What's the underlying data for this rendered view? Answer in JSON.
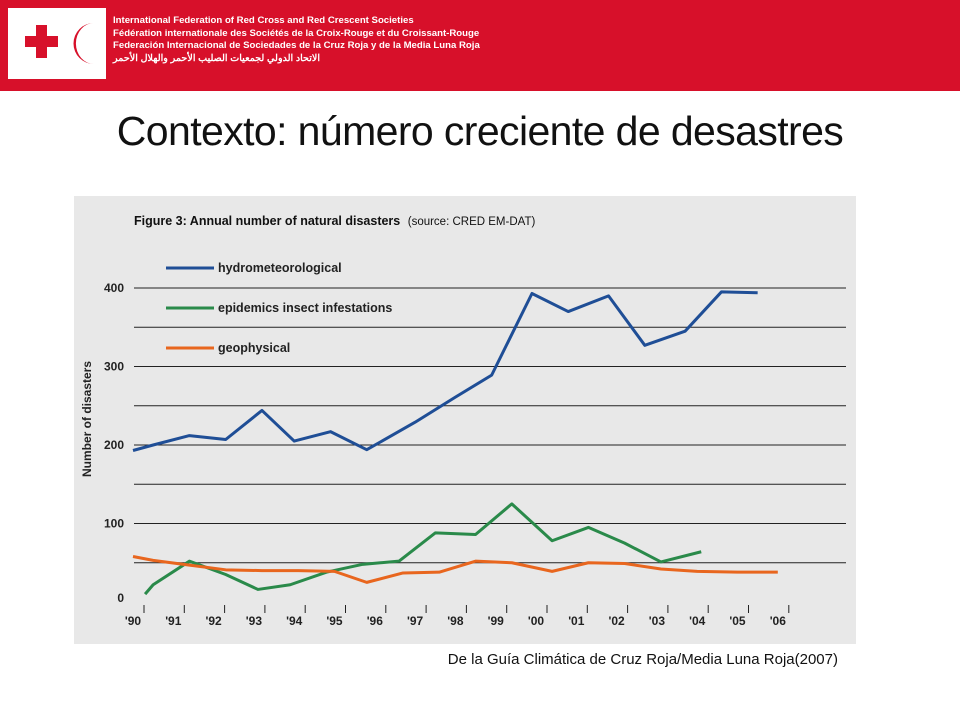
{
  "header": {
    "org_names": [
      "International Federation of Red Cross and Red Crescent Societies",
      "Fédération internationale des Sociétés de la Croix-Rouge et du Croissant-Rouge",
      "Federación Internacional de Sociedades de la Cruz Roja y de la Media Luna Roja",
      "الاتحاد الدولي لجمعيات الصليب الأحمر والهلال الأحمر"
    ],
    "brand_color": "#d7102a"
  },
  "slide": {
    "title": "Contexto:  número creciente de desastres",
    "source_note": "De la Guía Climática de Cruz Roja/Media Luna Roja(2007)"
  },
  "chart_data": {
    "type": "line",
    "title": "Figure 3: Annual number of natural disasters",
    "subtitle": "(source: CRED EM-DAT)",
    "xlabel": "",
    "ylabel": "Number of disasters",
    "categories": [
      "'90",
      "'91",
      "'92",
      "'93",
      "'94",
      "'95",
      "'96",
      "'97",
      "'98",
      "'99",
      "'00",
      "'01",
      "'02",
      "'03",
      "'04",
      "'05",
      "'06"
    ],
    "yticks": [
      0,
      100,
      200,
      300,
      400
    ],
    "ylim": [
      0,
      400
    ],
    "grid": true,
    "legend_position": "top-left",
    "series": [
      {
        "name": "hydrometeorological",
        "color": "#1f4e96",
        "x": [
          0,
          0.5,
          1.4,
          2.3,
          3.2,
          4.0,
          4.9,
          5.8,
          7.0,
          8.0,
          8.9,
          9.9,
          10.8,
          11.8,
          12.7,
          13.7,
          14.6,
          15.5
        ],
        "values": [
          193,
          200,
          212,
          207,
          244,
          205,
          217,
          194,
          229,
          261,
          289,
          393,
          370,
          390,
          327,
          345,
          395,
          394
        ]
      },
      {
        "name": "epidemics insect infestations",
        "color": "#2a8a4a",
        "x": [
          0.3,
          0.5,
          1.4,
          2.3,
          3.1,
          3.9,
          4.8,
          5.7,
          6.6,
          7.5,
          8.5,
          9.4,
          10.4,
          11.3,
          12.2,
          13.1,
          14.1,
          15.0
        ],
        "values": [
          10,
          22,
          52,
          35,
          16,
          22,
          38,
          48,
          52,
          88,
          86,
          125,
          78,
          95,
          75,
          51,
          64,
          null
        ]
      },
      {
        "name": "geophysical",
        "color": "#e8661e",
        "x": [
          0,
          0.5,
          1.4,
          2.3,
          3.2,
          4.1,
          5.0,
          5.8,
          6.7,
          7.6,
          8.5,
          9.4,
          10.4,
          11.3,
          12.2,
          13.1,
          14.0,
          15.0,
          16.0
        ],
        "values": [
          58,
          53,
          47,
          41,
          40,
          40,
          39,
          25,
          37,
          38,
          52,
          50,
          39,
          50,
          49,
          42,
          39,
          38,
          38
        ]
      }
    ]
  }
}
